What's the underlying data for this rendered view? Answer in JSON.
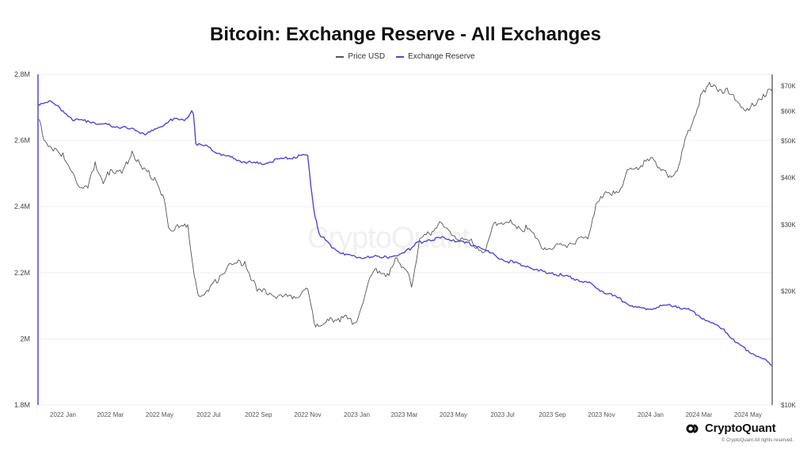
{
  "header": {
    "title": "Bitcoin: Exchange Reserve - All Exchanges",
    "legend": [
      {
        "label": "Price USD",
        "color": "#555555"
      },
      {
        "label": "Exchange Reserve",
        "color": "#5146d8"
      }
    ]
  },
  "watermark": "CryptoQuant",
  "brand": {
    "name": "CryptoQuant",
    "copyright": "© CryptoQuant All rights reserved."
  },
  "chart_data": {
    "type": "line",
    "title": "Bitcoin: Exchange Reserve - All Exchanges",
    "x_axis": {
      "tick_labels": [
        "2022 Jan",
        "2022 Mar",
        "2022 May",
        "2022 Jul",
        "2022 Sep",
        "2022 Nov",
        "2023 Jan",
        "2023 Mar",
        "2023 May",
        "2023 Jul",
        "2023 Sep",
        "2023 Nov",
        "2024 Jan",
        "2024 Mar",
        "2024 May"
      ],
      "range": [
        "2021-12-01",
        "2024-05-31"
      ]
    },
    "y_axis_left": {
      "label": "",
      "tick_labels": [
        "1.8M",
        "2M",
        "2.2M",
        "2.4M",
        "2.6M",
        "2.8M"
      ],
      "range": [
        1800000,
        2800000
      ]
    },
    "y_axis_right": {
      "label": "",
      "scale": "log",
      "tick_labels": [
        "$10K",
        "$20K",
        "$30K",
        "$40K",
        "$50K",
        "$60K",
        "$70K"
      ],
      "range": [
        10000,
        75000
      ]
    },
    "grid": true,
    "legend_position": "top-center",
    "series": [
      {
        "name": "Exchange Reserve",
        "axis": "left",
        "color": "#5146d8",
        "x": [
          "2021-12-01",
          "2021-12-15",
          "2022-01-01",
          "2022-01-15",
          "2022-02-01",
          "2022-02-15",
          "2022-03-01",
          "2022-03-15",
          "2022-04-01",
          "2022-04-15",
          "2022-05-01",
          "2022-05-15",
          "2022-06-01",
          "2022-06-10",
          "2022-06-12",
          "2022-06-15",
          "2022-07-01",
          "2022-07-15",
          "2022-08-01",
          "2022-08-15",
          "2022-09-01",
          "2022-09-15",
          "2022-10-01",
          "2022-10-15",
          "2022-11-01",
          "2022-11-05",
          "2022-11-10",
          "2022-11-15",
          "2022-12-01",
          "2022-12-15",
          "2023-01-01",
          "2023-01-15",
          "2023-02-01",
          "2023-02-15",
          "2023-03-01",
          "2023-03-10",
          "2023-03-15",
          "2023-04-01",
          "2023-04-15",
          "2023-05-01",
          "2023-05-15",
          "2023-06-01",
          "2023-06-15",
          "2023-07-01",
          "2023-07-15",
          "2023-08-01",
          "2023-08-15",
          "2023-09-01",
          "2023-09-15",
          "2023-10-01",
          "2023-10-15",
          "2023-11-01",
          "2023-11-15",
          "2023-12-01",
          "2023-12-15",
          "2024-01-01",
          "2024-01-15",
          "2024-02-01",
          "2024-02-15",
          "2024-03-01",
          "2024-03-15",
          "2024-04-01",
          "2024-04-15",
          "2024-05-01",
          "2024-05-15",
          "2024-05-31"
        ],
        "values": [
          2710000,
          2720000,
          2690000,
          2660000,
          2660000,
          2650000,
          2645000,
          2640000,
          2630000,
          2620000,
          2640000,
          2665000,
          2660000,
          2690000,
          2680000,
          2590000,
          2580000,
          2560000,
          2545000,
          2535000,
          2530000,
          2535000,
          2545000,
          2550000,
          2555000,
          2460000,
          2370000,
          2320000,
          2275000,
          2260000,
          2245000,
          2250000,
          2245000,
          2250000,
          2260000,
          2275000,
          2290000,
          2300000,
          2305000,
          2300000,
          2290000,
          2280000,
          2260000,
          2240000,
          2230000,
          2220000,
          2205000,
          2200000,
          2190000,
          2180000,
          2170000,
          2145000,
          2130000,
          2110000,
          2095000,
          2090000,
          2100000,
          2100000,
          2090000,
          2070000,
          2050000,
          2030000,
          1990000,
          1965000,
          1945000,
          1920000
        ]
      },
      {
        "name": "Price USD",
        "axis": "right",
        "color": "#555555",
        "x": [
          "2021-12-01",
          "2021-12-10",
          "2021-12-20",
          "2022-01-01",
          "2022-01-10",
          "2022-01-20",
          "2022-02-01",
          "2022-02-10",
          "2022-02-20",
          "2022-03-01",
          "2022-03-15",
          "2022-03-28",
          "2022-04-10",
          "2022-04-25",
          "2022-05-05",
          "2022-05-12",
          "2022-05-25",
          "2022-06-05",
          "2022-06-13",
          "2022-06-18",
          "2022-07-01",
          "2022-07-15",
          "2022-07-30",
          "2022-08-15",
          "2022-08-30",
          "2022-09-15",
          "2022-10-01",
          "2022-10-15",
          "2022-11-01",
          "2022-11-09",
          "2022-11-20",
          "2022-12-01",
          "2022-12-15",
          "2023-01-01",
          "2023-01-15",
          "2023-01-25",
          "2023-02-10",
          "2023-02-20",
          "2023-03-05",
          "2023-03-10",
          "2023-03-20",
          "2023-04-01",
          "2023-04-12",
          "2023-04-25",
          "2023-05-10",
          "2023-05-25",
          "2023-06-10",
          "2023-06-22",
          "2023-07-05",
          "2023-07-15",
          "2023-08-01",
          "2023-08-17",
          "2023-09-01",
          "2023-09-15",
          "2023-10-01",
          "2023-10-15",
          "2023-10-25",
          "2023-11-10",
          "2023-11-25",
          "2023-12-05",
          "2023-12-20",
          "2024-01-05",
          "2024-01-12",
          "2024-01-23",
          "2024-02-05",
          "2024-02-15",
          "2024-02-28",
          "2024-03-05",
          "2024-03-14",
          "2024-03-25",
          "2024-04-05",
          "2024-04-15",
          "2024-04-30",
          "2024-05-10",
          "2024-05-20",
          "2024-05-31"
        ],
        "values": [
          57000,
          50000,
          47000,
          46500,
          42000,
          38000,
          37500,
          44000,
          38500,
          42000,
          41000,
          47000,
          42000,
          40000,
          36000,
          29500,
          29500,
          30000,
          22000,
          19500,
          20000,
          22000,
          23500,
          24000,
          20000,
          19800,
          19300,
          19400,
          20300,
          16500,
          16300,
          16900,
          17000,
          16600,
          21000,
          23000,
          22000,
          24500,
          22500,
          20500,
          27500,
          28400,
          30000,
          29000,
          27500,
          26800,
          25500,
          30500,
          30500,
          30000,
          29200,
          26500,
          25800,
          26500,
          27300,
          27500,
          34000,
          36500,
          37500,
          42000,
          43000,
          44500,
          42500,
          40000,
          43000,
          52000,
          61000,
          67000,
          71500,
          67500,
          69000,
          64000,
          61000,
          62000,
          66500,
          67500
        ]
      }
    ]
  }
}
